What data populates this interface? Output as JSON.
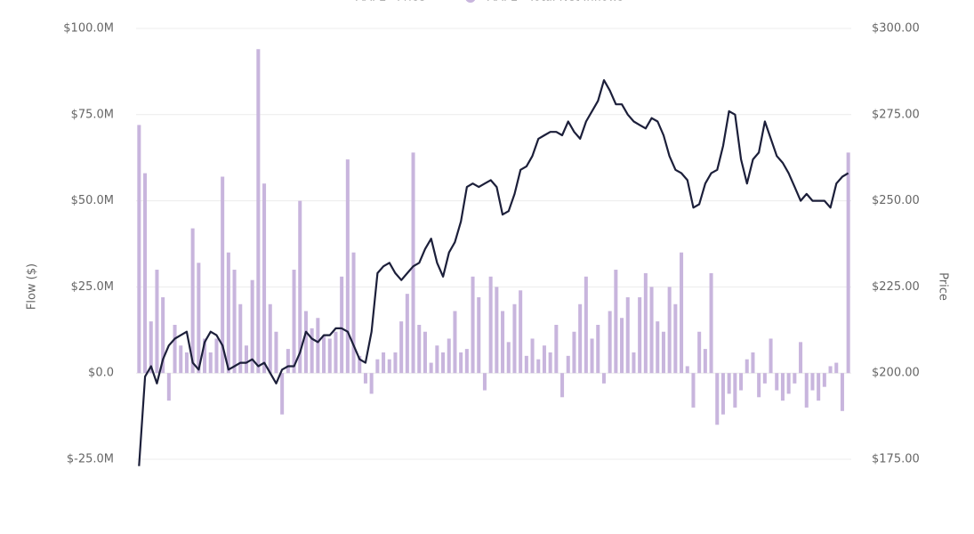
{
  "chart_data": {
    "type": "combo",
    "legend": "top",
    "grid": true,
    "axis_labels": {
      "y": "Flow ($)",
      "y2": "Price"
    },
    "categories": [
      null,
      null,
      null,
      null,
      null,
      null,
      null,
      null,
      null,
      null,
      null,
      null,
      null,
      null,
      null,
      null,
      null,
      null,
      null,
      null,
      null,
      null,
      null,
      null,
      null,
      null,
      null,
      null,
      null,
      null,
      null,
      null,
      null,
      null,
      null,
      null,
      null,
      null,
      null,
      null,
      null,
      null,
      null,
      null,
      null,
      null,
      null,
      null,
      null,
      null,
      null,
      null,
      null,
      null,
      null,
      null,
      null,
      null,
      null,
      null,
      null,
      null,
      null,
      null,
      null,
      null,
      null,
      null,
      null,
      null,
      null,
      null,
      null,
      null,
      null,
      null,
      null,
      null,
      null,
      null,
      null,
      null,
      null,
      null,
      null,
      null,
      null,
      null,
      null,
      null,
      null,
      null,
      null,
      null,
      null,
      null,
      null,
      null,
      null,
      null,
      null,
      null,
      null,
      null,
      null,
      null,
      null,
      null,
      null,
      null,
      null,
      null,
      null,
      null,
      null,
      null,
      null,
      null,
      null,
      null
    ],
    "ylim": [
      -25,
      100
    ],
    "yticks": [
      {
        "value": -25,
        "label": "$-25.0M"
      },
      {
        "value": 0,
        "label": "$0.0"
      },
      {
        "value": 25,
        "label": "$25.0M"
      },
      {
        "value": 50,
        "label": "$50.0M"
      },
      {
        "value": 75,
        "label": "$75.0M"
      },
      {
        "value": 100,
        "label": "$100.0M"
      }
    ],
    "y2lim": [
      175,
      300
    ],
    "y2ticks": [
      {
        "value": 175,
        "label": "$175.00"
      },
      {
        "value": 200,
        "label": "$200.00"
      },
      {
        "value": 225,
        "label": "$225.00"
      },
      {
        "value": 250,
        "label": "$250.00"
      },
      {
        "value": 275,
        "label": "$275.00"
      },
      {
        "value": 300,
        "label": "$300.00"
      }
    ],
    "series": [
      {
        "name": "AAPL - Price",
        "type": "line",
        "axis": "y2",
        "color": "#1c1f3a",
        "values": [
          173,
          199,
          202,
          197,
          204,
          208,
          210,
          211,
          212,
          203,
          201,
          209,
          212,
          211,
          208,
          201,
          202,
          203,
          203,
          204,
          202,
          203,
          200,
          197,
          201,
          202,
          202,
          206,
          212,
          210,
          209,
          211,
          211,
          213,
          213,
          212,
          208,
          204,
          203,
          212,
          229,
          231,
          232,
          229,
          227,
          229,
          231,
          232,
          236,
          239,
          232,
          228,
          235,
          238,
          244,
          254,
          255,
          254,
          255,
          256,
          254,
          246,
          247,
          252,
          259,
          260,
          263,
          268,
          269,
          270,
          270,
          269,
          273,
          270,
          268,
          273,
          276,
          279,
          285,
          282,
          278,
          278,
          275,
          273,
          272,
          271,
          274,
          273,
          269,
          263,
          259,
          258,
          256,
          248,
          249,
          255,
          258,
          259,
          266,
          276,
          275,
          262,
          255,
          262,
          264,
          273,
          268,
          263,
          261,
          258,
          254,
          250,
          252,
          250,
          250,
          250,
          248,
          255,
          257,
          258
        ]
      },
      {
        "name": "AAPL - Total Net Inflows",
        "type": "bar",
        "axis": "y",
        "color": "#c8b5dd",
        "values": [
          72,
          58,
          15,
          30,
          22,
          -8,
          14,
          8,
          6,
          42,
          32,
          10,
          6,
          10,
          57,
          35,
          30,
          20,
          8,
          27,
          94,
          55,
          20,
          12,
          -12,
          7,
          30,
          50,
          18,
          13,
          16,
          11,
          10,
          12,
          28,
          62,
          35,
          5,
          -3,
          -6,
          4,
          6,
          4,
          6,
          15,
          23,
          64,
          14,
          12,
          3,
          8,
          6,
          10,
          18,
          6,
          7,
          28,
          22,
          -5,
          28,
          25,
          18,
          9,
          20,
          24,
          5,
          10,
          4,
          8,
          6,
          14,
          -7,
          5,
          12,
          20,
          28,
          10,
          14,
          -3,
          18,
          30,
          16,
          22,
          6,
          22,
          29,
          25,
          15,
          12,
          25,
          20,
          35,
          2,
          -10,
          12,
          7,
          29,
          -15,
          -12,
          -6,
          -10,
          -5,
          4,
          6,
          -7,
          -3,
          10,
          -5,
          -8,
          -6,
          -3,
          9,
          -10,
          -5,
          -8,
          -4,
          2,
          3,
          -11,
          64
        ]
      }
    ]
  }
}
